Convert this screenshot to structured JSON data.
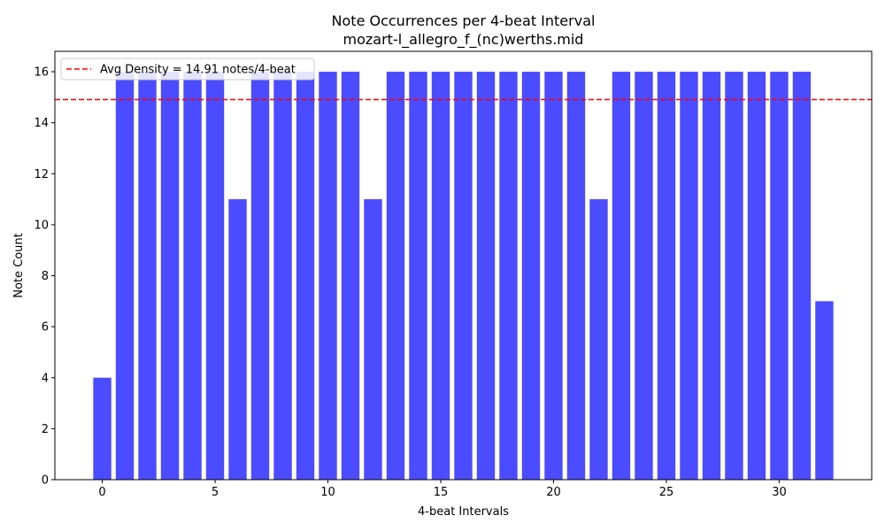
{
  "chart_data": {
    "type": "bar",
    "title": "Note Occurrences per 4-beat Interval",
    "subtitle": "mozart-l_allegro_f_(nc)werths.mid",
    "xlabel": "4-beat Intervals",
    "ylabel": "Note Count",
    "x": [
      0,
      1,
      2,
      3,
      4,
      5,
      6,
      7,
      8,
      9,
      10,
      11,
      12,
      13,
      14,
      15,
      16,
      17,
      18,
      19,
      20,
      21,
      22,
      23,
      24,
      25,
      26,
      27,
      28,
      29,
      30,
      31,
      32
    ],
    "values": [
      4,
      16,
      16,
      16,
      16,
      16,
      11,
      16,
      16,
      16,
      16,
      16,
      11,
      16,
      16,
      16,
      16,
      16,
      16,
      16,
      16,
      16,
      11,
      16,
      16,
      16,
      16,
      16,
      16,
      16,
      16,
      16,
      7
    ],
    "xlim": [
      -2.1,
      34.1
    ],
    "ylim": [
      0,
      16.8
    ],
    "xticks": [
      0,
      5,
      10,
      15,
      20,
      25,
      30
    ],
    "yticks": [
      0,
      2,
      4,
      6,
      8,
      10,
      12,
      14,
      16
    ],
    "bar_color": "#4b4bff",
    "reference_line": {
      "value": 14.91,
      "color": "#ff0000",
      "style": "dashed"
    },
    "legend": {
      "label": "Avg Density = 14.91 notes/4-beat",
      "position": "top-left"
    },
    "grid": false
  }
}
